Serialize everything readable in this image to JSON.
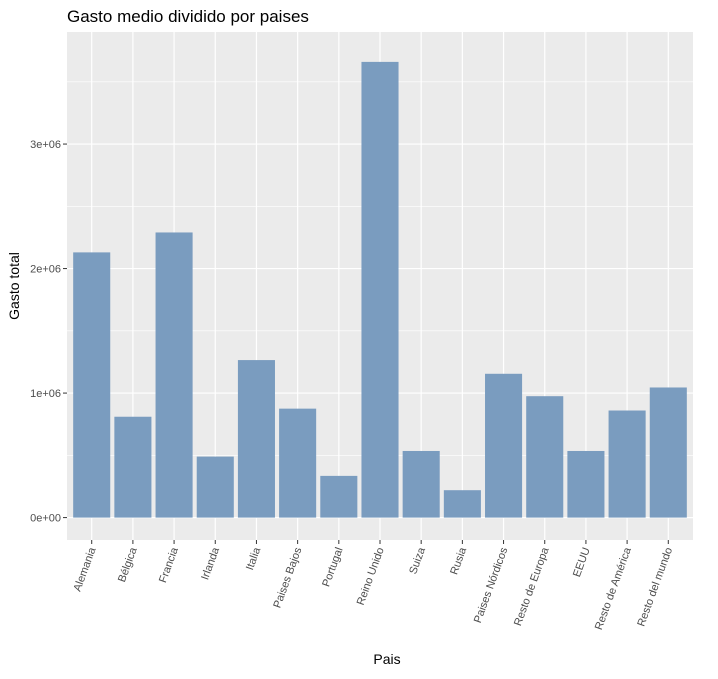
{
  "chart_data": {
    "type": "bar",
    "title": "Gasto medio dividido por paises",
    "xlabel": "Pais",
    "ylabel": "Gasto total",
    "categories": [
      "Alemania",
      "Bélgica",
      "Francia",
      "Irlanda",
      "Italia",
      "Paises Bajos",
      "Portugal",
      "Reino Unido",
      "Suiza",
      "Rusia",
      "Paises Nórdicos",
      "Resto de Europa",
      "EEUU",
      "Resto de América",
      "Resto del mundo"
    ],
    "values": [
      2130000,
      810000,
      2290000,
      490000,
      1265000,
      875000,
      335000,
      3660000,
      535000,
      220000,
      1155000,
      975000,
      535000,
      860000,
      1045000
    ],
    "ylim": [
      -180000,
      3900000
    ],
    "yticks": [
      0,
      1000000,
      2000000,
      3000000
    ],
    "ytick_labels": [
      "0e+00",
      "1e+06",
      "2e+06",
      "3e+06"
    ],
    "grid": true,
    "legend": "none",
    "colors": {
      "bar": "#7a9cbf",
      "panel_bg": "#ebebeb",
      "grid": "#ffffff"
    }
  }
}
